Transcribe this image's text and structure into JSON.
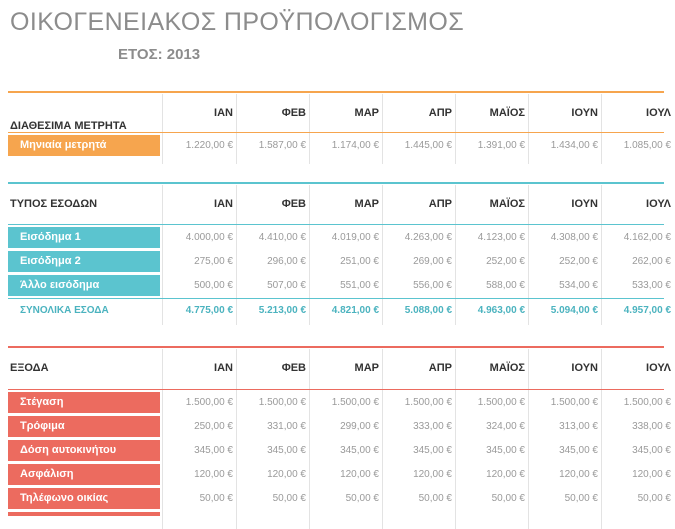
{
  "title": "ΟΙΚΟΓΕΝΕΙΑΚΟΣ ΠΡΟΫΠΟΛΟΓΙΣΜΟΣ",
  "year_label": "ΕΤΟΣ: 2013",
  "months": [
    "ΙΑΝ",
    "ΦΕΒ",
    "ΜΑΡ",
    "ΑΠΡ",
    "ΜΑΪΟΣ",
    "ΙΟΥΝ",
    "ΙΟΥΛ"
  ],
  "colors": {
    "orange": "#f6a54e",
    "teal": "#5bc4cf",
    "red": "#ec6b5f",
    "total": "#4bb3bf"
  },
  "cash": {
    "header": "ΔΙΑΘΕΣΙΜΑ ΜΕΤΡΗΤΑ",
    "rows": [
      {
        "label": "Μηνιαία μετρητά",
        "values": [
          "1.220,00 €",
          "1.587,00 €",
          "1.174,00 €",
          "1.445,00 €",
          "1.391,00 €",
          "1.434,00 €",
          "1.085,00 €"
        ]
      }
    ]
  },
  "income": {
    "header": "ΤΥΠΟΣ ΕΣΟΔΩΝ",
    "rows": [
      {
        "label": "Εισόδημα 1",
        "values": [
          "4.000,00 €",
          "4.410,00 €",
          "4.019,00 €",
          "4.263,00 €",
          "4.123,00 €",
          "4.308,00 €",
          "4.162,00 €"
        ]
      },
      {
        "label": "Εισόδημα 2",
        "values": [
          "275,00 €",
          "296,00 €",
          "251,00 €",
          "269,00 €",
          "252,00 €",
          "252,00 €",
          "262,00 €"
        ]
      },
      {
        "label": "Άλλο εισόδημα",
        "values": [
          "500,00 €",
          "507,00 €",
          "551,00 €",
          "556,00 €",
          "588,00 €",
          "534,00 €",
          "533,00 €"
        ]
      }
    ],
    "total_label": "ΣΥΝΟΛΙΚΑ ΕΣΟΔΑ",
    "totals": [
      "4.775,00 €",
      "5.213,00 €",
      "4.821,00 €",
      "5.088,00 €",
      "4.963,00 €",
      "5.094,00 €",
      "4.957,00 €"
    ]
  },
  "expenses": {
    "header": "ΕΞΟΔΑ",
    "rows": [
      {
        "label": "Στέγαση",
        "values": [
          "1.500,00 €",
          "1.500,00 €",
          "1.500,00 €",
          "1.500,00 €",
          "1.500,00 €",
          "1.500,00 €",
          "1.500,00 €"
        ]
      },
      {
        "label": "Τρόφιμα",
        "values": [
          "250,00 €",
          "331,00 €",
          "299,00 €",
          "333,00 €",
          "324,00 €",
          "313,00 €",
          "338,00 €"
        ]
      },
      {
        "label": "Δόση αυτοκινήτου",
        "values": [
          "345,00 €",
          "345,00 €",
          "345,00 €",
          "345,00 €",
          "345,00 €",
          "345,00 €",
          "345,00 €"
        ]
      },
      {
        "label": "Ασφάλιση",
        "values": [
          "120,00 €",
          "120,00 €",
          "120,00 €",
          "120,00 €",
          "120,00 €",
          "120,00 €",
          "120,00 €"
        ]
      },
      {
        "label": "Τηλέφωνο οικίας",
        "values": [
          "50,00 €",
          "50,00 €",
          "50,00 €",
          "50,00 €",
          "50,00 €",
          "50,00 €",
          "50,00 €"
        ]
      }
    ]
  }
}
